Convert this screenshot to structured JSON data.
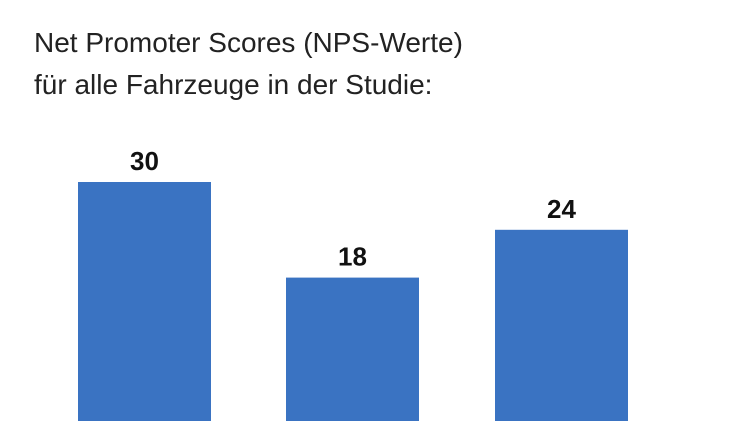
{
  "title_line1": "Net Promoter Scores (NPS-Werte)",
  "title_line2": "für alle Fahrzeuge in der Studie:",
  "bar_color": "#3a73c2",
  "chart_data": {
    "type": "bar",
    "title": "Net Promoter Scores (NPS-Werte) für alle Fahrzeuge in der Studie:",
    "categories": [
      "",
      "",
      ""
    ],
    "values": [
      30,
      18,
      24
    ],
    "data_labels": [
      "30",
      "18",
      "24"
    ],
    "xlabel": "",
    "ylabel": "",
    "ylim": [
      0,
      30
    ],
    "grid": false,
    "legend": "none"
  }
}
